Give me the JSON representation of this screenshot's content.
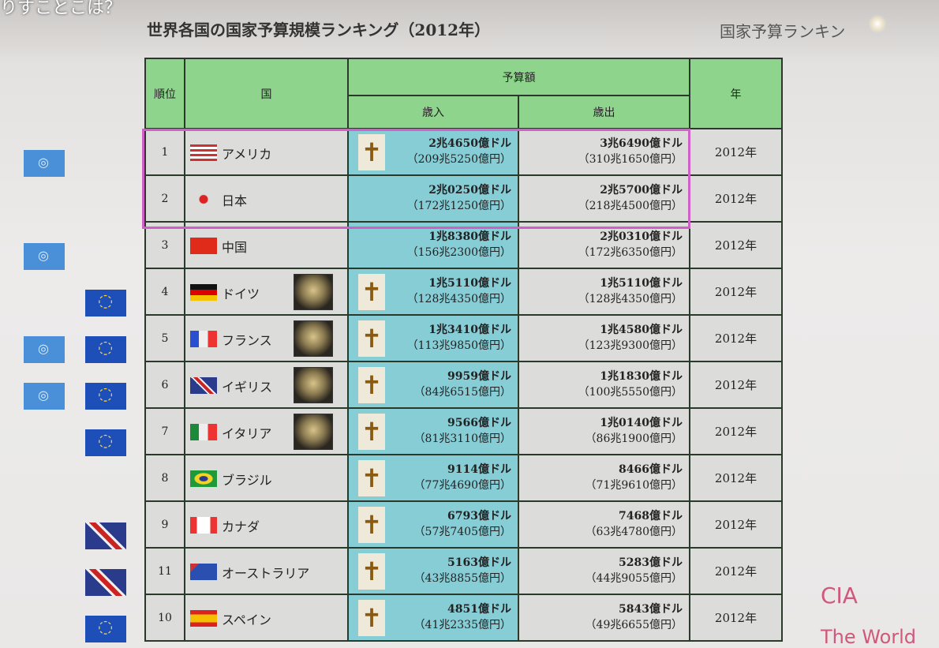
{
  "caption": "りすことこは？",
  "title": "世界各国の国家予算規模ランキング（2012年）",
  "subtitle": "国家予算ランキン",
  "headers": {
    "rank": "順位",
    "country": "国",
    "budget": "予算額",
    "revenue": "歳入",
    "expenditure": "歳出",
    "year": "年"
  },
  "rows": [
    {
      "rank": "1",
      "country": "アメリカ",
      "flag": "us",
      "coat": false,
      "cross": true,
      "rev_usd": "2兆4650億ドル",
      "rev_jpy": "（209兆5250億円）",
      "exp_usd": "3兆6490億ドル",
      "exp_jpy": "（310兆1650億円）",
      "year": "2012年",
      "badges": [
        "un"
      ]
    },
    {
      "rank": "2",
      "country": "日本",
      "flag": "jp",
      "coat": false,
      "cross": false,
      "rev_usd": "2兆0250億ドル",
      "rev_jpy": "（172兆1250億円）",
      "exp_usd": "2兆5700億ドル",
      "exp_jpy": "（218兆4500億円）",
      "year": "2012年",
      "badges": []
    },
    {
      "rank": "3",
      "country": "中国",
      "flag": "cn",
      "coat": false,
      "cross": false,
      "rev_usd": "1兆8380億ドル",
      "rev_jpy": "（156兆2300億円）",
      "exp_usd": "2兆0310億ドル",
      "exp_jpy": "（172兆6350億円）",
      "year": "2012年",
      "badges": [
        "un"
      ]
    },
    {
      "rank": "4",
      "country": "ドイツ",
      "flag": "de",
      "coat": true,
      "cross": true,
      "rev_usd": "1兆5110億ドル",
      "rev_jpy": "（128兆4350億円）",
      "exp_usd": "1兆5110億ドル",
      "exp_jpy": "（128兆4350億円）",
      "year": "2012年",
      "badges": [
        "eu"
      ]
    },
    {
      "rank": "5",
      "country": "フランス",
      "flag": "fr",
      "coat": true,
      "cross": true,
      "rev_usd": "1兆3410億ドル",
      "rev_jpy": "（113兆9850億円）",
      "exp_usd": "1兆4580億ドル",
      "exp_jpy": "（123兆9300億円）",
      "year": "2012年",
      "badges": [
        "un",
        "eu"
      ]
    },
    {
      "rank": "6",
      "country": "イギリス",
      "flag": "gb",
      "coat": true,
      "cross": true,
      "rev_usd": "9959億ドル",
      "rev_jpy": "（84兆6515億円）",
      "exp_usd": "1兆1830億ドル",
      "exp_jpy": "（100兆5550億円）",
      "year": "2012年",
      "badges": [
        "un",
        "eu"
      ]
    },
    {
      "rank": "7",
      "country": "イタリア",
      "flag": "it",
      "coat": true,
      "cross": true,
      "rev_usd": "9566億ドル",
      "rev_jpy": "（81兆3110億円）",
      "exp_usd": "1兆0140億ドル",
      "exp_jpy": "（86兆1900億円）",
      "year": "2012年",
      "badges": [
        "eu"
      ]
    },
    {
      "rank": "8",
      "country": "ブラジル",
      "flag": "br",
      "coat": false,
      "cross": true,
      "rev_usd": "9114億ドル",
      "rev_jpy": "（77兆4690億円）",
      "exp_usd": "8466億ドル",
      "exp_jpy": "（71兆9610億円）",
      "year": "2012年",
      "badges": []
    },
    {
      "rank": "9",
      "country": "カナダ",
      "flag": "ca",
      "coat": false,
      "cross": true,
      "rev_usd": "6793億ドル",
      "rev_jpy": "（57兆7405億円）",
      "exp_usd": "7468億ドル",
      "exp_jpy": "（63兆4780億円）",
      "year": "2012年",
      "badges": [
        "uk"
      ]
    },
    {
      "rank": "11",
      "country": "オーストラリア",
      "flag": "au",
      "coat": false,
      "cross": true,
      "rev_usd": "5163億ドル",
      "rev_jpy": "（43兆8855億円）",
      "exp_usd": "5283億ドル",
      "exp_jpy": "（44兆9055億円）",
      "year": "2012年",
      "badges": [
        "uk"
      ]
    },
    {
      "rank": "10",
      "country": "スペイン",
      "flag": "es",
      "coat": false,
      "cross": true,
      "rev_usd": "4851億ドル",
      "rev_jpy": "（41兆2335億円）",
      "exp_usd": "5843億ドル",
      "exp_jpy": "（49兆6655億円）",
      "year": "2012年",
      "badges": [
        "eu"
      ]
    }
  ],
  "highlight_color": "#d060c8",
  "source_1": "CIA",
  "source_2": "The World"
}
